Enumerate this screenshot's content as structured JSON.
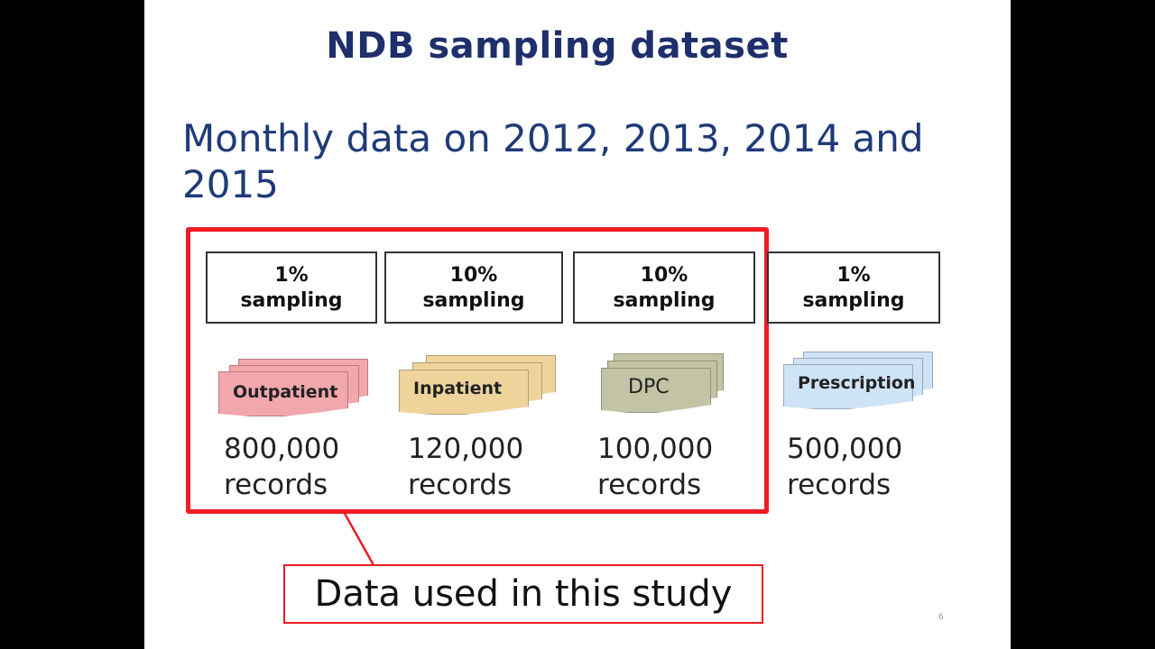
{
  "slide": {
    "title": "NDB sampling dataset",
    "subtitle": "Monthly data on 2012, 2013, 2014 and 2015",
    "callout": "Data used in this study",
    "page_number": "6"
  },
  "datasets": [
    {
      "rate": "1%",
      "sampling": "sampling",
      "label": "Outpatient",
      "count": "800,000",
      "unit": "records",
      "color": "#f2a7ad"
    },
    {
      "rate": "10%",
      "sampling": "sampling",
      "label": "Inpatient",
      "count": "120,000",
      "unit": "records",
      "color": "#eed39b"
    },
    {
      "rate": "10%",
      "sampling": "sampling",
      "label": "DPC",
      "count": "100,000",
      "unit": "records",
      "color": "#c2c4a5"
    },
    {
      "rate": "1%",
      "sampling": "sampling",
      "label": "Prescription",
      "count": "500,000",
      "unit": "records",
      "color": "#cfe3f6"
    }
  ],
  "colors": {
    "title": "#1f2f6b",
    "subtitle": "#1f3a78",
    "highlight": "#ee1c25"
  }
}
